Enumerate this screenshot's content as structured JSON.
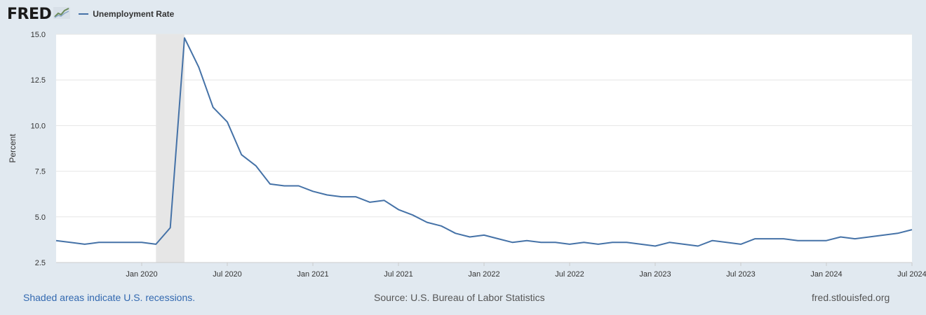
{
  "header": {
    "logo_text": "FRED",
    "logo_icon": "chart-line-icon",
    "legend_label": "Unemployment Rate"
  },
  "footer": {
    "recession_note": "Shaded areas indicate U.S. recessions.",
    "source": "Source: U.S. Bureau of Labor Statistics",
    "site": "fred.stlouisfed.org"
  },
  "colors": {
    "line": "#4572a7",
    "recession": "#e6e6e6",
    "background": "#e1e9f0",
    "plot": "#ffffff",
    "grid": "#e6e6e6",
    "link": "#3369b0"
  },
  "chart_data": {
    "type": "line",
    "title": "",
    "xlabel": "",
    "ylabel": "Percent",
    "ylim": [
      2.5,
      15.0
    ],
    "xlim": [
      "2019-07",
      "2024-07"
    ],
    "yticks": [
      "2.5",
      "5.0",
      "7.5",
      "10.0",
      "12.5",
      "15.0"
    ],
    "xticks": [
      {
        "date": "2020-01",
        "label": "Jan 2020"
      },
      {
        "date": "2020-07",
        "label": "Jul 2020"
      },
      {
        "date": "2021-01",
        "label": "Jan 2021"
      },
      {
        "date": "2021-07",
        "label": "Jul 2021"
      },
      {
        "date": "2022-01",
        "label": "Jan 2022"
      },
      {
        "date": "2022-07",
        "label": "Jul 2022"
      },
      {
        "date": "2023-01",
        "label": "Jan 2023"
      },
      {
        "date": "2023-07",
        "label": "Jul 2023"
      },
      {
        "date": "2024-01",
        "label": "Jan 2024"
      },
      {
        "date": "2024-07",
        "label": "Jul 2024"
      }
    ],
    "recessions": [
      {
        "start": "2020-02",
        "end": "2020-04"
      }
    ],
    "grid": true,
    "legend": "top-left",
    "series": [
      {
        "name": "Unemployment Rate",
        "x": [
          "2019-07",
          "2019-08",
          "2019-09",
          "2019-10",
          "2019-11",
          "2019-12",
          "2020-01",
          "2020-02",
          "2020-03",
          "2020-04",
          "2020-05",
          "2020-06",
          "2020-07",
          "2020-08",
          "2020-09",
          "2020-10",
          "2020-11",
          "2020-12",
          "2021-01",
          "2021-02",
          "2021-03",
          "2021-04",
          "2021-05",
          "2021-06",
          "2021-07",
          "2021-08",
          "2021-09",
          "2021-10",
          "2021-11",
          "2021-12",
          "2022-01",
          "2022-02",
          "2022-03",
          "2022-04",
          "2022-05",
          "2022-06",
          "2022-07",
          "2022-08",
          "2022-09",
          "2022-10",
          "2022-11",
          "2022-12",
          "2023-01",
          "2023-02",
          "2023-03",
          "2023-04",
          "2023-05",
          "2023-06",
          "2023-07",
          "2023-08",
          "2023-09",
          "2023-10",
          "2023-11",
          "2023-12",
          "2024-01",
          "2024-02",
          "2024-03",
          "2024-04",
          "2024-05",
          "2024-06",
          "2024-07"
        ],
        "values": [
          3.7,
          3.6,
          3.5,
          3.6,
          3.6,
          3.6,
          3.6,
          3.5,
          4.4,
          14.8,
          13.2,
          11.0,
          10.2,
          8.4,
          7.8,
          6.8,
          6.7,
          6.7,
          6.4,
          6.2,
          6.1,
          6.1,
          5.8,
          5.9,
          5.4,
          5.1,
          4.7,
          4.5,
          4.1,
          3.9,
          4.0,
          3.8,
          3.6,
          3.7,
          3.6,
          3.6,
          3.5,
          3.6,
          3.5,
          3.6,
          3.6,
          3.5,
          3.4,
          3.6,
          3.5,
          3.4,
          3.7,
          3.6,
          3.5,
          3.8,
          3.8,
          3.8,
          3.7,
          3.7,
          3.7,
          3.9,
          3.8,
          3.9,
          4.0,
          4.1,
          4.3
        ]
      }
    ]
  }
}
